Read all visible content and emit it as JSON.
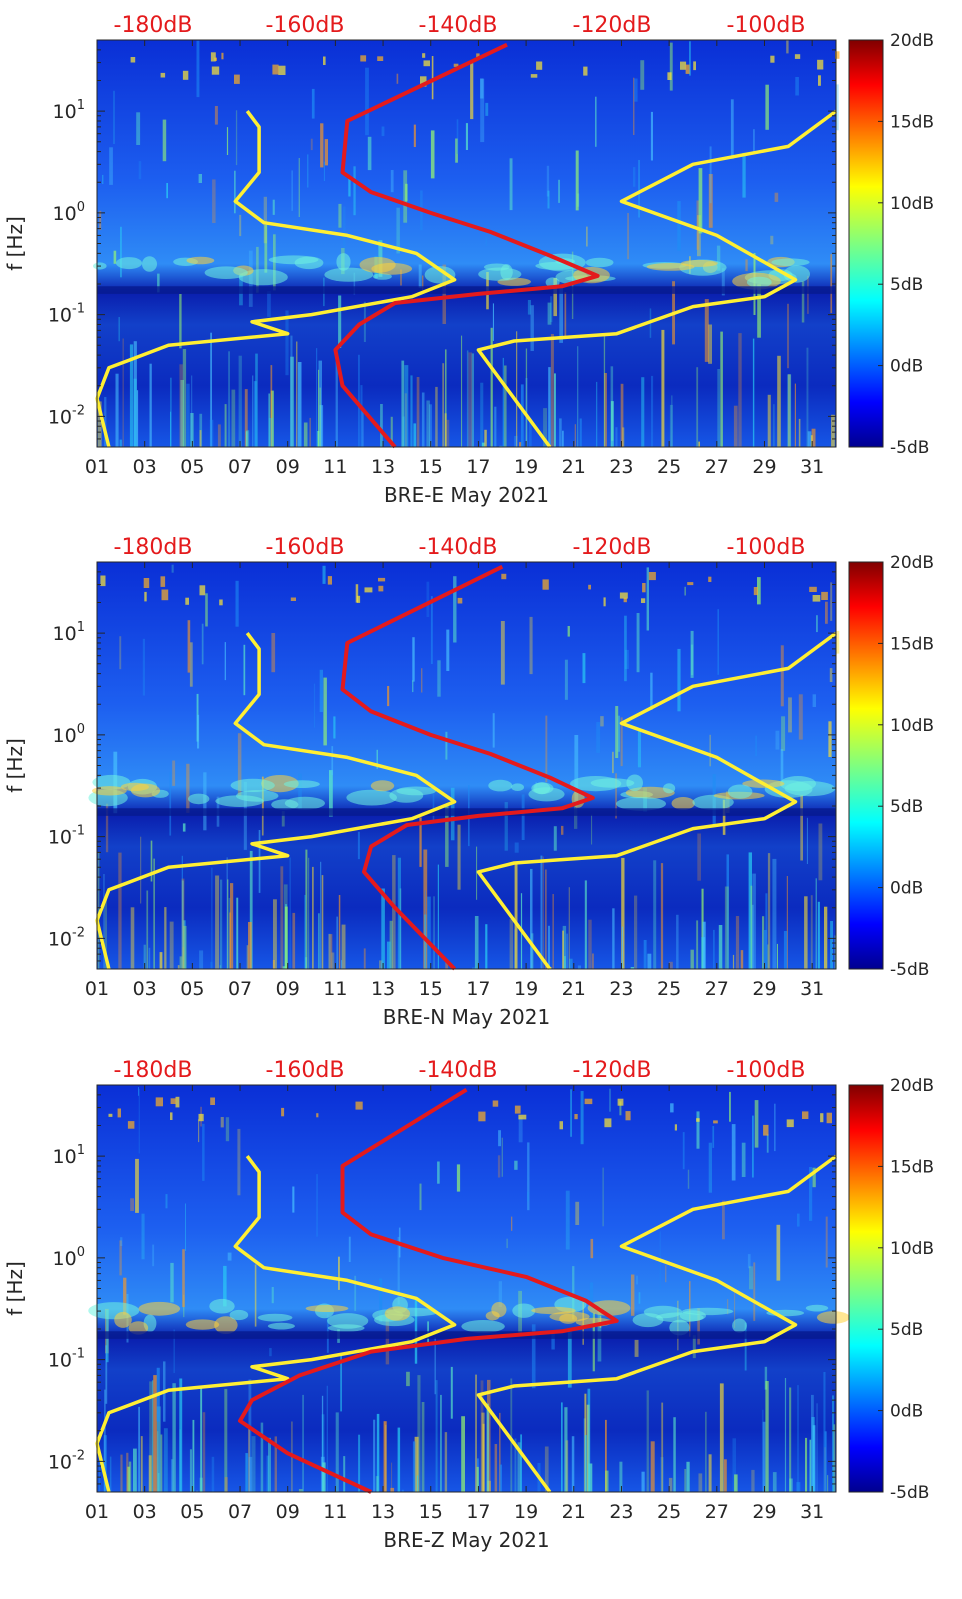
{
  "chart_data": [
    {
      "type": "heatmap",
      "xlabel": "BRE-E May 2021",
      "ylabel": "f [Hz]",
      "x_ticks": [
        "01",
        "03",
        "05",
        "07",
        "09",
        "11",
        "13",
        "15",
        "17",
        "19",
        "21",
        "23",
        "25",
        "27",
        "29",
        "31"
      ],
      "x_range_days": [
        1,
        32
      ],
      "y_scale": "log",
      "y_range_hz": [
        0.005,
        50
      ],
      "y_ticks": [
        {
          "value": 10,
          "label": "10",
          "exp": "1"
        },
        {
          "value": 1,
          "label": "10",
          "exp": "0"
        },
        {
          "value": 0.1,
          "label": "10",
          "exp": "-1"
        },
        {
          "value": 0.01,
          "label": "10",
          "exp": "-2"
        }
      ],
      "top_axis_labels": [
        "-180dB",
        "-160dB",
        "-140dB",
        "-120dB",
        "-100dB"
      ],
      "top_axis_values_db": [
        -180,
        -160,
        -140,
        -120,
        -100
      ],
      "colorbar": {
        "labels": [
          "20dB",
          "15dB",
          "10dB",
          "5dB",
          "0dB",
          "-5dB"
        ],
        "values": [
          20,
          15,
          10,
          5,
          0,
          -5
        ],
        "range": [
          -5,
          20
        ],
        "colormap": "jet"
      },
      "series": [
        {
          "color": "#ffef33",
          "x": [
            7.3,
            7.8,
            7.8,
            6.8,
            8.0,
            11.5,
            14.4,
            16.0,
            14.2,
            10.0,
            7.5,
            9.0,
            4.0,
            1.5,
            1.0,
            1.5
          ],
          "y": [
            10,
            7,
            2.5,
            1.3,
            0.8,
            0.6,
            0.4,
            0.22,
            0.15,
            0.1,
            0.085,
            0.065,
            0.05,
            0.03,
            0.015,
            0.005
          ]
        },
        {
          "color": "#ffef33",
          "x": [
            32.0,
            30.0,
            26.0,
            23.0,
            27.0,
            30.3,
            29.0,
            26.0,
            22.8,
            18.5,
            17.0,
            20.0
          ],
          "y": [
            10,
            4.5,
            3.0,
            1.3,
            0.6,
            0.22,
            0.15,
            0.12,
            0.065,
            0.055,
            0.045,
            0.005
          ]
        },
        {
          "color": "#e41a1c",
          "x": [
            18.2,
            11.5,
            11.3,
            12.5,
            15.0,
            17.5,
            20.0,
            22.0,
            20.5,
            17.0,
            13.5,
            12.0,
            11.0,
            11.3,
            13.5
          ],
          "y": [
            45,
            8,
            2.5,
            1.6,
            1.0,
            0.65,
            0.38,
            0.24,
            0.19,
            0.16,
            0.13,
            0.08,
            0.045,
            0.02,
            0.005
          ]
        }
      ]
    },
    {
      "type": "heatmap",
      "xlabel": "BRE-N May 2021",
      "ylabel": "f [Hz]",
      "x_ticks": [
        "01",
        "03",
        "05",
        "07",
        "09",
        "11",
        "13",
        "15",
        "17",
        "19",
        "21",
        "23",
        "25",
        "27",
        "29",
        "31"
      ],
      "x_range_days": [
        1,
        32
      ],
      "y_scale": "log",
      "y_range_hz": [
        0.005,
        50
      ],
      "y_ticks": [
        {
          "value": 10,
          "label": "10",
          "exp": "1"
        },
        {
          "value": 1,
          "label": "10",
          "exp": "0"
        },
        {
          "value": 0.1,
          "label": "10",
          "exp": "-1"
        },
        {
          "value": 0.01,
          "label": "10",
          "exp": "-2"
        }
      ],
      "top_axis_labels": [
        "-180dB",
        "-160dB",
        "-140dB",
        "-120dB",
        "-100dB"
      ],
      "top_axis_values_db": [
        -180,
        -160,
        -140,
        -120,
        -100
      ],
      "colorbar": {
        "labels": [
          "20dB",
          "15dB",
          "10dB",
          "5dB",
          "0dB",
          "-5dB"
        ],
        "values": [
          20,
          15,
          10,
          5,
          0,
          -5
        ],
        "range": [
          -5,
          20
        ],
        "colormap": "jet"
      },
      "series": [
        {
          "color": "#ffef33",
          "x": [
            7.3,
            7.8,
            7.8,
            6.8,
            8.0,
            11.5,
            14.4,
            16.0,
            14.2,
            10.0,
            7.5,
            9.0,
            4.0,
            1.5,
            1.0,
            1.5
          ],
          "y": [
            10,
            7,
            2.5,
            1.3,
            0.8,
            0.6,
            0.4,
            0.22,
            0.15,
            0.1,
            0.085,
            0.065,
            0.05,
            0.03,
            0.015,
            0.005
          ]
        },
        {
          "color": "#ffef33",
          "x": [
            32.0,
            30.0,
            26.0,
            23.0,
            27.0,
            30.3,
            29.0,
            26.0,
            22.8,
            18.5,
            17.0,
            20.0
          ],
          "y": [
            10,
            4.5,
            3.0,
            1.3,
            0.6,
            0.22,
            0.15,
            0.12,
            0.065,
            0.055,
            0.045,
            0.005
          ]
        },
        {
          "color": "#e41a1c",
          "x": [
            18.0,
            11.5,
            11.3,
            12.5,
            15.0,
            17.5,
            20.0,
            21.8,
            20.5,
            17.0,
            14.0,
            12.5,
            12.2,
            13.5,
            16.0
          ],
          "y": [
            45,
            8,
            2.8,
            1.7,
            1.0,
            0.65,
            0.38,
            0.24,
            0.19,
            0.16,
            0.13,
            0.08,
            0.045,
            0.02,
            0.005
          ]
        }
      ]
    },
    {
      "type": "heatmap",
      "xlabel": "BRE-Z May 2021",
      "ylabel": "f [Hz]",
      "x_ticks": [
        "01",
        "03",
        "05",
        "07",
        "09",
        "11",
        "13",
        "15",
        "17",
        "19",
        "21",
        "23",
        "25",
        "27",
        "29",
        "31"
      ],
      "x_range_days": [
        1,
        32
      ],
      "y_scale": "log",
      "y_range_hz": [
        0.005,
        50
      ],
      "y_ticks": [
        {
          "value": 10,
          "label": "10",
          "exp": "1"
        },
        {
          "value": 1,
          "label": "10",
          "exp": "0"
        },
        {
          "value": 0.1,
          "label": "10",
          "exp": "-1"
        },
        {
          "value": 0.01,
          "label": "10",
          "exp": "-2"
        }
      ],
      "top_axis_labels": [
        "-180dB",
        "-160dB",
        "-140dB",
        "-120dB",
        "-100dB"
      ],
      "top_axis_values_db": [
        -180,
        -160,
        -140,
        -120,
        -100
      ],
      "colorbar": {
        "labels": [
          "20dB",
          "15dB",
          "10dB",
          "5dB",
          "0dB",
          "-5dB"
        ],
        "values": [
          20,
          15,
          10,
          5,
          0,
          -5
        ],
        "range": [
          -5,
          20
        ],
        "colormap": "jet"
      },
      "series": [
        {
          "color": "#ffef33",
          "x": [
            7.3,
            7.8,
            7.8,
            6.8,
            8.0,
            11.5,
            14.4,
            16.0,
            14.2,
            10.0,
            7.5,
            9.0,
            4.0,
            1.5,
            1.0,
            1.5
          ],
          "y": [
            10,
            7,
            2.5,
            1.3,
            0.8,
            0.6,
            0.4,
            0.22,
            0.15,
            0.1,
            0.085,
            0.065,
            0.05,
            0.03,
            0.015,
            0.005
          ]
        },
        {
          "color": "#ffef33",
          "x": [
            32.0,
            30.0,
            26.0,
            23.0,
            27.0,
            30.3,
            29.0,
            26.0,
            22.8,
            18.5,
            17.0,
            20.0
          ],
          "y": [
            10,
            4.5,
            3.0,
            1.3,
            0.6,
            0.22,
            0.15,
            0.12,
            0.065,
            0.055,
            0.045,
            0.005
          ]
        },
        {
          "color": "#e41a1c",
          "x": [
            16.5,
            11.3,
            11.3,
            12.5,
            15.5,
            19.0,
            21.5,
            22.8,
            20.5,
            16.5,
            12.5,
            9.5,
            7.5,
            7.0,
            9.0,
            12.5
          ],
          "y": [
            45,
            8,
            2.8,
            1.7,
            1.0,
            0.65,
            0.38,
            0.24,
            0.19,
            0.16,
            0.12,
            0.07,
            0.04,
            0.025,
            0.012,
            0.005
          ]
        }
      ]
    }
  ]
}
